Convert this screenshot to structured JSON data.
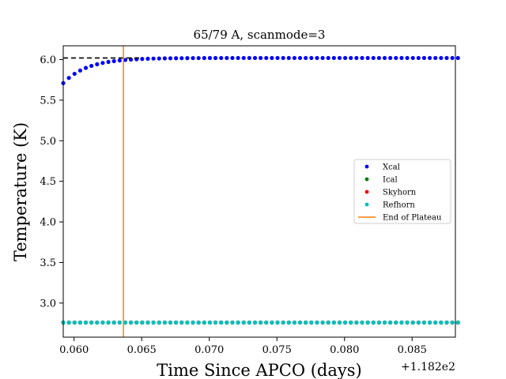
{
  "chart_data": {
    "type": "scatter",
    "title": "65/79 A, scanmode=3",
    "xlabel": "Time Since APCO (days)",
    "ylabel": "Temperature (K)",
    "x_offset_label": "+1.182e2",
    "xlim": [
      0.0592,
      0.0882
    ],
    "ylim": [
      2.58,
      6.17
    ],
    "x_ticks": [
      0.06,
      0.065,
      0.07,
      0.075,
      0.08,
      0.085
    ],
    "x_tick_labels": [
      "0.060",
      "0.065",
      "0.070",
      "0.075",
      "0.080",
      "0.085"
    ],
    "y_ticks": [
      3.0,
      3.5,
      4.0,
      4.5,
      5.0,
      5.5,
      6.0
    ],
    "y_tick_labels": [
      "3.0",
      "3.5",
      "4.0",
      "4.5",
      "5.0",
      "5.5",
      "6.0"
    ],
    "grid": false,
    "legend": "center-right",
    "reference_line": {
      "y": 6.02,
      "x_start": 0.0592,
      "x_end": 0.065,
      "style": "dashed",
      "color": "#000000"
    },
    "plateau_line": {
      "x": 0.06365,
      "color": "#ff7f0e"
    },
    "sampling": {
      "x_start": 0.0592,
      "step": 0.000417,
      "count": 71
    },
    "xcal_model": {
      "plateau": 6.02,
      "start": 5.71,
      "tau": 0.0018
    },
    "series": [
      {
        "name": "Xcal",
        "color": "#0000ff",
        "kind": "rising",
        "value": 6.02
      },
      {
        "name": "Ical",
        "color": "#008000",
        "kind": "constant",
        "value": 2.76
      },
      {
        "name": "Skyhorn",
        "color": "#ff0000",
        "kind": "constant",
        "value": 2.76
      },
      {
        "name": "Refhorn",
        "color": "#00bfbf",
        "kind": "constant",
        "value": 2.76
      }
    ],
    "legend_entries": [
      {
        "label": "Xcal",
        "marker": "dot",
        "color": "#0000ff"
      },
      {
        "label": "Ical",
        "marker": "dot",
        "color": "#008000"
      },
      {
        "label": "Skyhorn",
        "marker": "dot",
        "color": "#ff0000"
      },
      {
        "label": "Refhorn",
        "marker": "dot",
        "color": "#00bfbf"
      },
      {
        "label": "End of Plateau",
        "marker": "line",
        "color": "#ff7f0e"
      }
    ]
  }
}
